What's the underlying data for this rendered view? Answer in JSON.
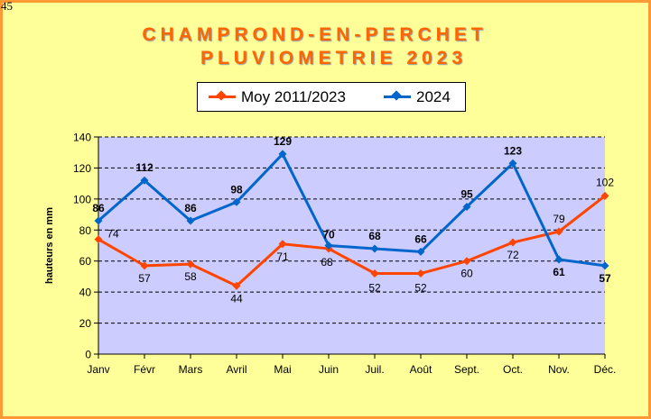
{
  "corner_label": "45",
  "title_line1": "CHAMPROND-EN-PERCHET",
  "title_line2": "PLUVIOMETRIE 2023",
  "colors": {
    "moy": "#ff4500",
    "y2024": "#0066cc",
    "plot_bg": "#ccccff",
    "frame_bg": "#ffff99",
    "border": "#ff9933"
  },
  "chart_data": {
    "type": "line",
    "title": "CHAMPROND-EN-PERCHET PLUVIOMETRIE 2023",
    "xlabel": "",
    "ylabel": "hauteurs en mm",
    "ylim": [
      0,
      140
    ],
    "yticks": [
      "0",
      "20",
      "40",
      "60",
      "80",
      "100",
      "120",
      "140"
    ],
    "categories": [
      "Janv",
      "Févr",
      "Mars",
      "Avril",
      "Mai",
      "Juin",
      "Juil.",
      "Août",
      "Sept.",
      "Oct.",
      "Nov.",
      "Déc."
    ],
    "grid": true,
    "legend_position": "top",
    "series": [
      {
        "name": "Moy 2011/2023",
        "values": [
          74,
          57,
          58,
          44,
          71,
          68,
          52,
          52,
          60,
          72,
          79,
          102
        ]
      },
      {
        "name": "2024",
        "values": [
          86,
          112,
          86,
          98,
          129,
          70,
          68,
          66,
          95,
          123,
          61,
          57
        ]
      }
    ]
  }
}
